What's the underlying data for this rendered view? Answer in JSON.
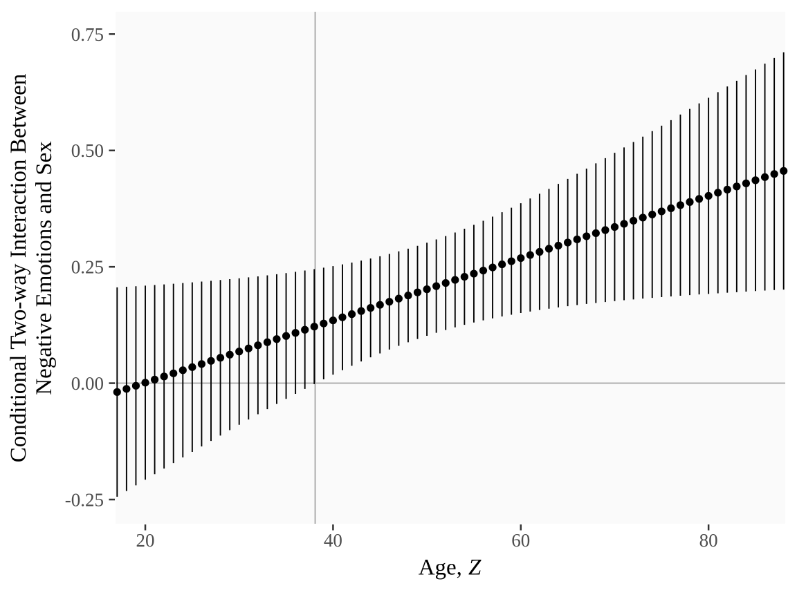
{
  "axes": {
    "y_title_line1": "Conditional Two-way Interaction Between",
    "y_title_line2": "Negative Emotions and Sex",
    "x_title_pre": "Age,",
    "x_title_var": "Z"
  },
  "chart_data": {
    "type": "scatter",
    "title": "",
    "xlabel": "Age, Z",
    "ylabel": "Conditional Two-way Interaction Between Negative Emotions and Sex",
    "x_domain": [
      16.83,
      88.17
    ],
    "y_domain": [
      -0.302,
      0.798
    ],
    "x_tick_values": [
      20,
      40,
      60,
      80
    ],
    "x_tick_labels": [
      "20",
      "40",
      "60",
      "80"
    ],
    "y_tick_values": [
      -0.25,
      0.0,
      0.25,
      0.5,
      0.75
    ],
    "y_tick_labels": [
      "-0.25",
      "0.00",
      "0.25",
      "0.50",
      "0.75"
    ],
    "grid": false,
    "legend": false,
    "reference_lines": {
      "vline_x": 38.1,
      "hline_y": 0.0
    },
    "x": [
      17,
      18,
      19,
      20,
      21,
      22,
      23,
      24,
      25,
      26,
      27,
      28,
      29,
      30,
      31,
      32,
      33,
      34,
      35,
      36,
      37,
      38,
      39,
      40,
      41,
      42,
      43,
      44,
      45,
      46,
      47,
      48,
      49,
      50,
      51,
      52,
      53,
      54,
      55,
      56,
      57,
      58,
      59,
      60,
      61,
      62,
      63,
      64,
      65,
      66,
      67,
      68,
      69,
      70,
      71,
      72,
      73,
      74,
      75,
      76,
      77,
      78,
      79,
      80,
      81,
      82,
      83,
      84,
      85,
      86,
      87,
      88
    ],
    "estimate": [
      -0.019,
      -0.0123,
      -0.0056,
      0.0011,
      0.0077,
      0.0144,
      0.0211,
      0.0278,
      0.0345,
      0.0412,
      0.0479,
      0.0546,
      0.0613,
      0.068,
      0.0747,
      0.0814,
      0.088,
      0.0947,
      0.1014,
      0.1081,
      0.1148,
      0.1215,
      0.1282,
      0.1349,
      0.1416,
      0.1483,
      0.155,
      0.1617,
      0.1683,
      0.175,
      0.1817,
      0.1884,
      0.1951,
      0.2018,
      0.2085,
      0.2152,
      0.2219,
      0.2286,
      0.2353,
      0.242,
      0.2486,
      0.2553,
      0.262,
      0.2687,
      0.2754,
      0.2821,
      0.2888,
      0.2955,
      0.3022,
      0.3089,
      0.3156,
      0.3223,
      0.3289,
      0.3356,
      0.3423,
      0.349,
      0.3557,
      0.3624,
      0.3691,
      0.3758,
      0.3825,
      0.3892,
      0.3959,
      0.4025,
      0.4092,
      0.4159,
      0.4226,
      0.4293,
      0.436,
      0.4427,
      0.4494,
      0.456
    ],
    "lower": [
      -0.2439,
      -0.2317,
      -0.2195,
      -0.2074,
      -0.1955,
      -0.1834,
      -0.1715,
      -0.1595,
      -0.1477,
      -0.1359,
      -0.1241,
      -0.1125,
      -0.1009,
      -0.0894,
      -0.078,
      -0.0667,
      -0.0557,
      -0.0446,
      -0.0337,
      -0.023,
      -0.0124,
      -0.002,
      0.0082,
      0.0182,
      0.0279,
      0.0374,
      0.0466,
      0.0555,
      0.064,
      0.0723,
      0.0802,
      0.0878,
      0.095,
      0.1018,
      0.1082,
      0.1143,
      0.12,
      0.1253,
      0.1303,
      0.135,
      0.1393,
      0.1433,
      0.1471,
      0.1507,
      0.154,
      0.1572,
      0.1601,
      0.1628,
      0.1654,
      0.1679,
      0.1702,
      0.1723,
      0.1743,
      0.1763,
      0.1782,
      0.1799,
      0.1817,
      0.1833,
      0.1849,
      0.1864,
      0.1878,
      0.1892,
      0.1906,
      0.1918,
      0.1931,
      0.1943,
      0.1955,
      0.1967,
      0.1979,
      0.199,
      0.2001,
      0.201
    ],
    "upper": [
      0.2059,
      0.2071,
      0.2083,
      0.2096,
      0.2109,
      0.2122,
      0.2137,
      0.2151,
      0.2167,
      0.2183,
      0.2199,
      0.2217,
      0.2235,
      0.2254,
      0.2274,
      0.2295,
      0.2317,
      0.234,
      0.2365,
      0.2392,
      0.242,
      0.245,
      0.2482,
      0.2516,
      0.2553,
      0.2592,
      0.2634,
      0.2679,
      0.2726,
      0.2777,
      0.2832,
      0.289,
      0.2952,
      0.3018,
      0.3088,
      0.3161,
      0.3238,
      0.3319,
      0.3403,
      0.349,
      0.3579,
      0.3673,
      0.3769,
      0.3867,
      0.3968,
      0.407,
      0.4175,
      0.4282,
      0.439,
      0.4499,
      0.461,
      0.4723,
      0.4835,
      0.4949,
      0.5064,
      0.5181,
      0.5297,
      0.5415,
      0.5533,
      0.5652,
      0.5772,
      0.5892,
      0.6012,
      0.6132,
      0.6253,
      0.6375,
      0.6497,
      0.6619,
      0.6741,
      0.6864,
      0.6987,
      0.711
    ],
    "colors": {
      "point": "#000000",
      "error_bar": "#000000",
      "reference_line": "#b3b3b3",
      "panel_background": "#fafafa",
      "tick_mark": "#333333",
      "tick_label": "#4d4d4d",
      "axis_title": "#000000"
    }
  }
}
